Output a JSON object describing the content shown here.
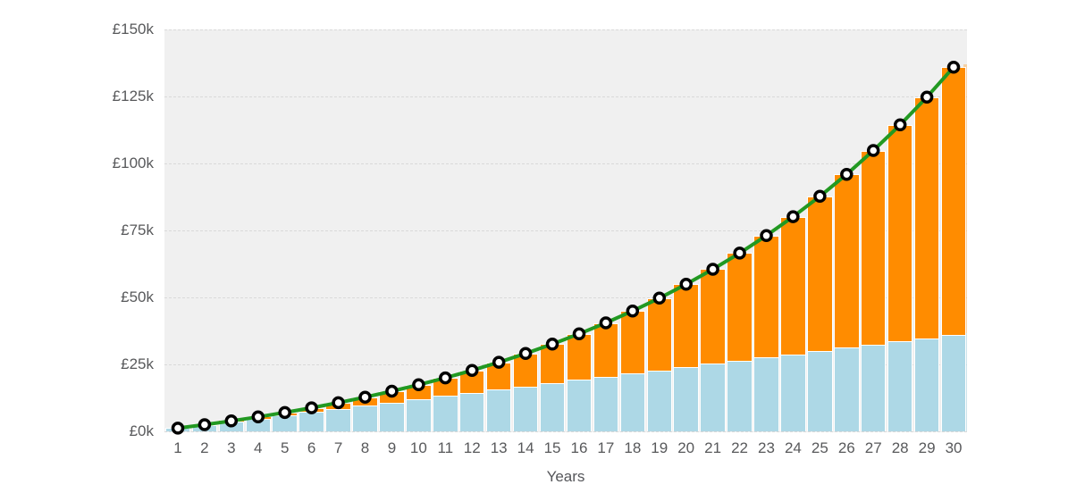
{
  "chart_data": {
    "type": "bar",
    "subtype": "stacked-bars-with-line-overlay",
    "title": "",
    "xlabel": "Years",
    "ylabel": "",
    "categories": [
      1,
      2,
      3,
      4,
      5,
      6,
      7,
      8,
      9,
      10,
      11,
      12,
      13,
      14,
      15,
      16,
      17,
      18,
      19,
      20,
      21,
      22,
      23,
      24,
      25,
      26,
      27,
      28,
      29,
      30
    ],
    "series": [
      {
        "id": "blue_bars",
        "type": "bar",
        "stacked": true,
        "color": "#add8e6",
        "values": [
          1200,
          2400,
          3600,
          4800,
          6000,
          7200,
          8400,
          9600,
          10800,
          12000,
          13200,
          14400,
          15600,
          16800,
          18000,
          19200,
          20400,
          21600,
          22800,
          24000,
          25200,
          26400,
          27600,
          28800,
          30000,
          31200,
          32400,
          33600,
          34800,
          36000
        ]
      },
      {
        "id": "orange_bars",
        "type": "bar",
        "stacked": true,
        "color": "#ff8c00",
        "values": [
          0,
          96,
          296,
          607,
          1040,
          1603,
          2307,
          3164,
          4185,
          5384,
          6775,
          8373,
          10194,
          12258,
          14583,
          17189,
          20100,
          23340,
          26936,
          30914,
          35308,
          40148,
          45472,
          51318,
          57727,
          64745,
          72421,
          80807,
          89959,
          99940
        ]
      },
      {
        "id": "total_line",
        "type": "line",
        "color": "#229922",
        "marker_fill": "#ffffff",
        "marker_stroke": "#000000",
        "values": [
          1200,
          2496,
          3896,
          5407,
          7040,
          8803,
          10707,
          12764,
          14985,
          17384,
          19975,
          22773,
          25794,
          29058,
          32583,
          36389,
          40500,
          44940,
          49736,
          54914,
          60508,
          66548,
          73072,
          80118,
          87727,
          95945,
          104821,
          114407,
          124759,
          135940
        ]
      }
    ],
    "ylim": [
      0,
      150000
    ],
    "yticks": [
      {
        "value": 0,
        "label": "£0k"
      },
      {
        "value": 25000,
        "label": "£25k"
      },
      {
        "value": 50000,
        "label": "£50k"
      },
      {
        "value": 75000,
        "label": "£75k"
      },
      {
        "value": 100000,
        "label": "£100k"
      },
      {
        "value": 125000,
        "label": "£125k"
      },
      {
        "value": 150000,
        "label": "£150k"
      }
    ],
    "grid": "horizontal-dashed",
    "legend": "none",
    "plot_background": "#f0f0f0",
    "tick_label_color": "#58595b"
  }
}
